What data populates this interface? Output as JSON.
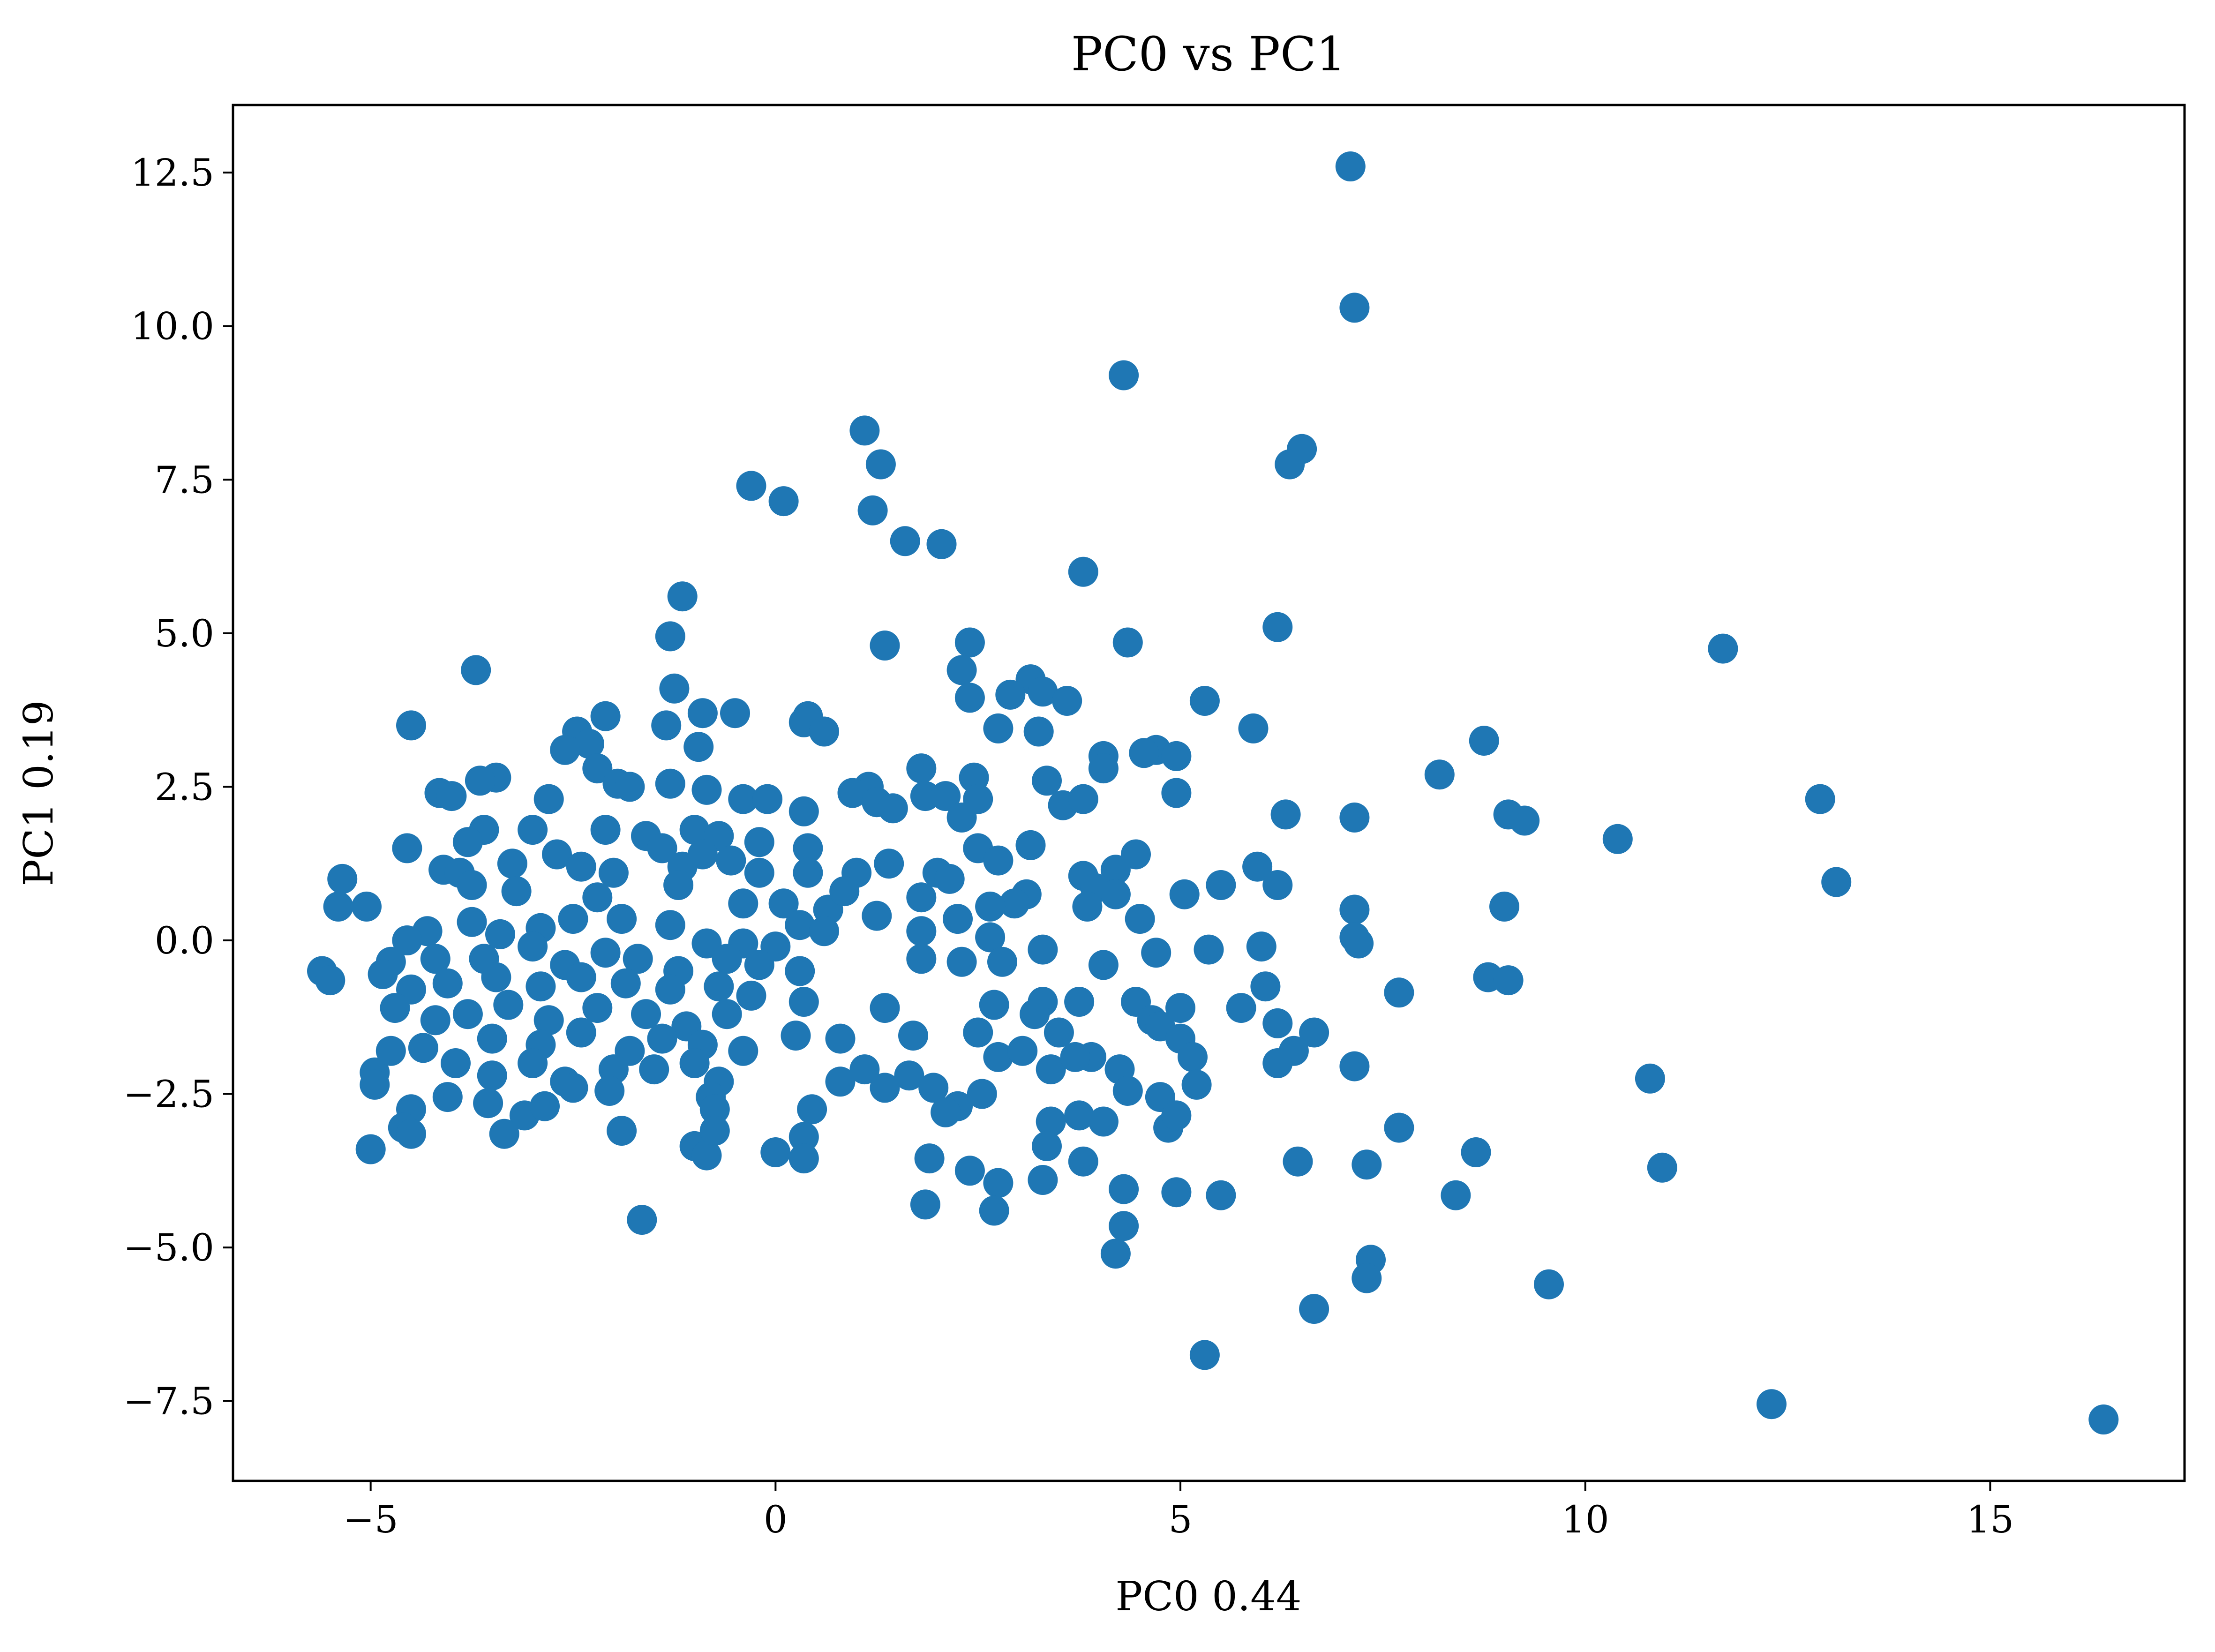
{
  "chart_data": {
    "type": "scatter",
    "title": "PC0 vs PC1",
    "xlabel": "PC0 0.44",
    "ylabel": "PC1 0.19",
    "xlim": [
      -6.7,
      17.4
    ],
    "ylim": [
      -8.8,
      13.6
    ],
    "x_ticks": [
      -5,
      0,
      5,
      10,
      15
    ],
    "x_tick_labels": [
      "−5",
      "0",
      "5",
      "10",
      "15"
    ],
    "y_ticks": [
      -7.5,
      -5.0,
      -2.5,
      0.0,
      2.5,
      5.0,
      7.5,
      10.0,
      12.5
    ],
    "y_tick_labels": [
      "−7.5",
      "−5.0",
      "−2.5",
      "0.0",
      "2.5",
      "5.0",
      "7.5",
      "10.0",
      "12.5"
    ],
    "grid": false,
    "marker_color": "#1f77b4",
    "series": [
      {
        "points": [
          [
            7.1,
            12.6
          ],
          [
            7.15,
            10.3
          ],
          [
            4.3,
            9.2
          ],
          [
            6.5,
            8.0
          ],
          [
            6.35,
            7.75
          ],
          [
            1.1,
            8.3
          ],
          [
            1.3,
            7.75
          ],
          [
            1.2,
            7.0
          ],
          [
            -0.3,
            7.4
          ],
          [
            0.1,
            7.15
          ],
          [
            1.6,
            6.5
          ],
          [
            2.05,
            6.45
          ],
          [
            3.8,
            6.0
          ],
          [
            -1.15,
            5.6
          ],
          [
            6.2,
            5.1
          ],
          [
            -1.3,
            4.95
          ],
          [
            4.35,
            4.85
          ],
          [
            2.4,
            4.85
          ],
          [
            1.35,
            4.8
          ],
          [
            11.7,
            4.75
          ],
          [
            -3.7,
            4.4
          ],
          [
            2.3,
            4.4
          ],
          [
            3.15,
            4.25
          ],
          [
            -1.25,
            4.1
          ],
          [
            2.9,
            4.0
          ],
          [
            3.3,
            4.05
          ],
          [
            2.4,
            3.95
          ],
          [
            3.6,
            3.9
          ],
          [
            5.3,
            3.9
          ],
          [
            -0.9,
            3.7
          ],
          [
            -0.5,
            3.7
          ],
          [
            0.4,
            3.65
          ],
          [
            -2.1,
            3.65
          ],
          [
            -4.5,
            3.5
          ],
          [
            -1.35,
            3.5
          ],
          [
            0.35,
            3.55
          ],
          [
            0.6,
            3.4
          ],
          [
            2.75,
            3.45
          ],
          [
            3.25,
            3.4
          ],
          [
            5.9,
            3.45
          ],
          [
            -2.45,
            3.4
          ],
          [
            -2.3,
            3.2
          ],
          [
            -2.6,
            3.1
          ],
          [
            -0.95,
            3.15
          ],
          [
            4.7,
            3.1
          ],
          [
            4.95,
            3.0
          ],
          [
            4.05,
            3.0
          ],
          [
            4.55,
            3.05
          ],
          [
            8.75,
            3.25
          ],
          [
            -2.2,
            2.8
          ],
          [
            1.8,
            2.8
          ],
          [
            4.05,
            2.8
          ],
          [
            2.45,
            2.65
          ],
          [
            3.35,
            2.6
          ],
          [
            8.2,
            2.7
          ],
          [
            -3.45,
            2.65
          ],
          [
            -3.65,
            2.6
          ],
          [
            -1.95,
            2.55
          ],
          [
            -1.8,
            2.5
          ],
          [
            -1.3,
            2.55
          ],
          [
            1.15,
            2.5
          ],
          [
            -4.15,
            2.4
          ],
          [
            -4.0,
            2.35
          ],
          [
            -2.8,
            2.3
          ],
          [
            -0.85,
            2.45
          ],
          [
            -0.4,
            2.3
          ],
          [
            -0.1,
            2.3
          ],
          [
            0.35,
            2.1
          ],
          [
            0.95,
            2.4
          ],
          [
            1.25,
            2.25
          ],
          [
            1.45,
            2.15
          ],
          [
            1.85,
            2.35
          ],
          [
            2.1,
            2.35
          ],
          [
            2.3,
            2.0
          ],
          [
            2.5,
            2.3
          ],
          [
            3.55,
            2.2
          ],
          [
            3.8,
            2.3
          ],
          [
            4.95,
            2.4
          ],
          [
            6.3,
            2.05
          ],
          [
            7.15,
            2.0
          ],
          [
            9.05,
            2.05
          ],
          [
            9.25,
            1.95
          ],
          [
            10.4,
            1.65
          ],
          [
            12.9,
            2.3
          ],
          [
            13.1,
            0.95
          ],
          [
            -3.6,
            1.8
          ],
          [
            -3.0,
            1.8
          ],
          [
            -2.1,
            1.8
          ],
          [
            -1.6,
            1.7
          ],
          [
            -1.0,
            1.8
          ],
          [
            -0.7,
            1.7
          ],
          [
            -3.8,
            1.6
          ],
          [
            -2.7,
            1.4
          ],
          [
            -2.4,
            1.2
          ],
          [
            -1.4,
            1.5
          ],
          [
            -0.9,
            1.4
          ],
          [
            -0.2,
            1.6
          ],
          [
            0.4,
            1.5
          ],
          [
            -4.55,
            1.5
          ],
          [
            -4.1,
            1.15
          ],
          [
            -3.9,
            1.1
          ],
          [
            -3.25,
            1.25
          ],
          [
            -2.0,
            1.1
          ],
          [
            -1.15,
            1.2
          ],
          [
            -0.55,
            1.3
          ],
          [
            -0.2,
            1.1
          ],
          [
            0.4,
            1.1
          ],
          [
            1.0,
            1.1
          ],
          [
            1.4,
            1.25
          ],
          [
            2.0,
            1.1
          ],
          [
            2.5,
            1.5
          ],
          [
            2.75,
            1.3
          ],
          [
            3.15,
            1.55
          ],
          [
            3.8,
            1.05
          ],
          [
            4.45,
            1.4
          ],
          [
            4.2,
            1.15
          ],
          [
            5.95,
            1.2
          ],
          [
            6.2,
            0.9
          ],
          [
            5.5,
            0.9
          ],
          [
            5.05,
            0.75
          ],
          [
            3.95,
            0.85
          ],
          [
            4.2,
            0.75
          ],
          [
            3.1,
            0.75
          ],
          [
            2.95,
            0.6
          ],
          [
            2.65,
            0.55
          ],
          [
            1.8,
            0.7
          ],
          [
            2.15,
            1.0
          ],
          [
            -5.35,
            1.0
          ],
          [
            -5.4,
            0.55
          ],
          [
            -5.05,
            0.55
          ],
          [
            -3.75,
            0.9
          ],
          [
            -3.2,
            0.8
          ],
          [
            -2.2,
            0.7
          ],
          [
            -1.2,
            0.9
          ],
          [
            -0.4,
            0.6
          ],
          [
            0.1,
            0.6
          ],
          [
            0.65,
            0.5
          ],
          [
            0.85,
            0.8
          ],
          [
            1.25,
            0.4
          ],
          [
            1.8,
            0.15
          ],
          [
            2.25,
            0.35
          ],
          [
            2.65,
            0.05
          ],
          [
            3.85,
            0.55
          ],
          [
            4.5,
            0.35
          ],
          [
            7.15,
            0.5
          ],
          [
            9.0,
            0.55
          ],
          [
            -4.3,
            0.15
          ],
          [
            -4.55,
            0.0
          ],
          [
            -3.75,
            0.3
          ],
          [
            -3.4,
            0.1
          ],
          [
            -2.9,
            0.2
          ],
          [
            -2.5,
            0.35
          ],
          [
            -1.9,
            0.35
          ],
          [
            -1.3,
            0.25
          ],
          [
            -0.85,
            -0.05
          ],
          [
            -0.4,
            -0.05
          ],
          [
            0.0,
            -0.1
          ],
          [
            0.3,
            0.25
          ],
          [
            0.6,
            0.15
          ],
          [
            -4.75,
            -0.35
          ],
          [
            -4.2,
            -0.3
          ],
          [
            -3.6,
            -0.3
          ],
          [
            -3.0,
            -0.1
          ],
          [
            -2.6,
            -0.4
          ],
          [
            -2.1,
            -0.2
          ],
          [
            -1.7,
            -0.3
          ],
          [
            -1.2,
            -0.5
          ],
          [
            -0.6,
            -0.3
          ],
          [
            -0.2,
            -0.4
          ],
          [
            0.3,
            -0.5
          ],
          [
            3.3,
            -0.15
          ],
          [
            4.7,
            -0.2
          ],
          [
            5.35,
            -0.15
          ],
          [
            6.0,
            -0.1
          ],
          [
            7.2,
            -0.05
          ],
          [
            7.15,
            0.05
          ],
          [
            -5.6,
            -0.5
          ],
          [
            -5.5,
            -0.65
          ],
          [
            -4.85,
            -0.55
          ],
          [
            -4.5,
            -0.8
          ],
          [
            -4.05,
            -0.7
          ],
          [
            -3.45,
            -0.6
          ],
          [
            -2.9,
            -0.75
          ],
          [
            -2.4,
            -0.6
          ],
          [
            -1.85,
            -0.7
          ],
          [
            -1.3,
            -0.8
          ],
          [
            -0.7,
            -0.75
          ],
          [
            -0.3,
            -0.9
          ],
          [
            -4.7,
            -1.1
          ],
          [
            -4.2,
            -1.3
          ],
          [
            -3.8,
            -1.2
          ],
          [
            -3.3,
            -1.05
          ],
          [
            -2.8,
            -1.3
          ],
          [
            -2.2,
            -1.1
          ],
          [
            -1.6,
            -1.2
          ],
          [
            -1.1,
            -1.4
          ],
          [
            -0.6,
            -1.2
          ],
          [
            0.35,
            -1.0
          ],
          [
            1.8,
            -0.3
          ],
          [
            2.3,
            -0.35
          ],
          [
            2.8,
            -0.35
          ],
          [
            4.05,
            -0.4
          ],
          [
            6.05,
            -0.75
          ],
          [
            5.75,
            -1.1
          ],
          [
            4.45,
            -1.0
          ],
          [
            4.65,
            -1.3
          ],
          [
            5.0,
            -1.1
          ],
          [
            3.3,
            -1.0
          ],
          [
            3.75,
            -1.0
          ],
          [
            7.7,
            -0.85
          ],
          [
            8.8,
            -0.6
          ],
          [
            9.05,
            -0.65
          ],
          [
            -3.5,
            -1.6
          ],
          [
            -2.9,
            -1.7
          ],
          [
            -2.4,
            -1.5
          ],
          [
            -1.8,
            -1.8
          ],
          [
            -1.4,
            -1.6
          ],
          [
            -0.9,
            -1.7
          ],
          [
            -0.4,
            -1.8
          ],
          [
            0.25,
            -1.55
          ],
          [
            0.8,
            -1.6
          ],
          [
            1.35,
            -1.1
          ],
          [
            1.7,
            -1.55
          ],
          [
            2.5,
            -1.5
          ],
          [
            2.7,
            -1.05
          ],
          [
            3.2,
            -1.2
          ],
          [
            3.5,
            -1.5
          ],
          [
            3.9,
            -1.9
          ],
          [
            4.25,
            -2.1
          ],
          [
            4.75,
            -1.4
          ],
          [
            5.0,
            -1.6
          ],
          [
            5.15,
            -1.9
          ],
          [
            6.2,
            -1.35
          ],
          [
            6.4,
            -1.8
          ],
          [
            6.65,
            -1.5
          ],
          [
            -4.95,
            -2.15
          ],
          [
            -4.75,
            -1.8
          ],
          [
            -4.35,
            -1.75
          ],
          [
            -3.95,
            -2.0
          ],
          [
            -3.5,
            -2.2
          ],
          [
            -3.0,
            -2.0
          ],
          [
            -2.6,
            -2.3
          ],
          [
            -2.0,
            -2.1
          ],
          [
            -1.5,
            -2.1
          ],
          [
            -1.0,
            -2.0
          ],
          [
            -0.7,
            -2.3
          ],
          [
            0.8,
            -2.3
          ],
          [
            1.1,
            -2.1
          ],
          [
            1.35,
            -2.4
          ],
          [
            1.65,
            -2.2
          ],
          [
            1.95,
            -2.4
          ],
          [
            2.25,
            -2.7
          ],
          [
            2.55,
            -2.5
          ],
          [
            2.75,
            -1.9
          ],
          [
            3.05,
            -1.8
          ],
          [
            3.4,
            -2.1
          ],
          [
            3.7,
            -1.9
          ],
          [
            4.35,
            -2.45
          ],
          [
            4.75,
            -2.55
          ],
          [
            5.2,
            -2.35
          ],
          [
            6.2,
            -2.0
          ],
          [
            7.15,
            -2.05
          ],
          [
            -4.95,
            -2.35
          ],
          [
            -4.5,
            -2.75
          ],
          [
            -4.05,
            -2.55
          ],
          [
            -3.55,
            -2.65
          ],
          [
            -3.1,
            -2.85
          ],
          [
            -2.5,
            -2.4
          ],
          [
            -2.05,
            -2.45
          ],
          [
            -0.8,
            -2.55
          ],
          [
            -0.75,
            -2.75
          ],
          [
            0.45,
            -2.75
          ],
          [
            2.1,
            -2.8
          ],
          [
            3.4,
            -2.95
          ],
          [
            3.75,
            -2.85
          ],
          [
            4.05,
            -2.95
          ],
          [
            4.85,
            -3.05
          ],
          [
            4.95,
            -2.85
          ],
          [
            7.7,
            -3.05
          ],
          [
            10.8,
            -2.25
          ],
          [
            -5.0,
            -3.4
          ],
          [
            -4.6,
            -3.05
          ],
          [
            -4.5,
            -3.15
          ],
          [
            -3.35,
            -3.15
          ],
          [
            -2.85,
            -2.7
          ],
          [
            -1.9,
            -3.1
          ],
          [
            -1.0,
            -3.35
          ],
          [
            -0.85,
            -3.5
          ],
          [
            -0.75,
            -3.1
          ],
          [
            0.0,
            -3.45
          ],
          [
            0.35,
            -3.2
          ],
          [
            0.35,
            -3.55
          ],
          [
            1.9,
            -3.55
          ],
          [
            2.4,
            -3.75
          ],
          [
            2.75,
            -3.95
          ],
          [
            3.35,
            -3.35
          ],
          [
            3.3,
            -3.9
          ],
          [
            3.8,
            -3.6
          ],
          [
            6.45,
            -3.6
          ],
          [
            7.3,
            -3.65
          ],
          [
            8.65,
            -3.45
          ],
          [
            10.95,
            -3.7
          ],
          [
            -1.65,
            -4.55
          ],
          [
            1.85,
            -4.3
          ],
          [
            2.7,
            -4.4
          ],
          [
            4.3,
            -4.05
          ],
          [
            4.95,
            -4.1
          ],
          [
            5.5,
            -4.15
          ],
          [
            8.4,
            -4.15
          ],
          [
            4.3,
            -4.65
          ],
          [
            4.2,
            -5.1
          ],
          [
            7.35,
            -5.2
          ],
          [
            7.3,
            -5.5
          ],
          [
            9.55,
            -5.6
          ],
          [
            6.65,
            -6.0
          ],
          [
            5.3,
            -6.75
          ],
          [
            12.3,
            -7.55
          ],
          [
            16.4,
            -7.8
          ]
        ]
      }
    ]
  }
}
